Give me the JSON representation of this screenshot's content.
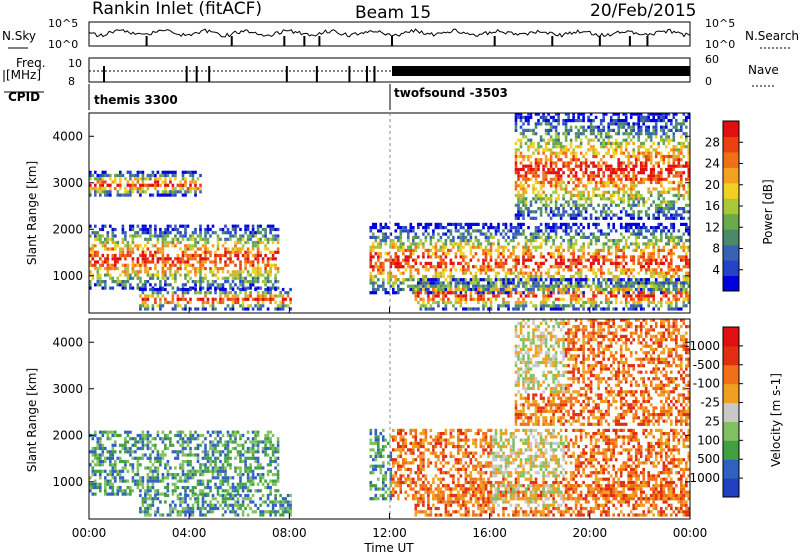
{
  "header": {
    "station": "Rankin Inlet (fitACF)",
    "beam": "Beam 15",
    "date": "20/Feb/2015"
  },
  "strips": {
    "noise_label": "N.Sky",
    "noise_label_right": "N.Search",
    "noise_ticks_left": [
      "10^5",
      "10^0"
    ],
    "noise_ticks_right": [
      "10^5",
      "10^0"
    ],
    "freq_label_line1": "Freq.",
    "freq_label_line2": "[MHz]",
    "freq_ticks_left": [
      "10",
      "8"
    ],
    "nave_label": "Nave",
    "nave_ticks_right": [
      "60",
      "0"
    ],
    "cpid_label": "CPID",
    "cpid_segments": [
      {
        "label": "themis 3300",
        "start_hour": 0,
        "end_hour": 12
      },
      {
        "label": "twofsound -3503",
        "start_hour": 12,
        "end_hour": 24
      }
    ]
  },
  "chart_data": [
    {
      "type": "heatmap",
      "name": "power-panel",
      "x_range_hours": [
        0,
        24
      ],
      "ylabel": "Slant Range [km]",
      "yticks": [
        1000,
        2000,
        3000,
        4000
      ],
      "ylim": [
        200,
        4500
      ],
      "colorbar": {
        "label": "Power [dB]",
        "ticks": [
          4,
          8,
          12,
          16,
          20,
          24,
          28
        ],
        "colors": [
          "#0000dd",
          "#2444c8",
          "#3a62b4",
          "#4a8a6a",
          "#6aaa4a",
          "#a8c83a",
          "#f0d020",
          "#f4a020",
          "#f07018",
          "#ec4010",
          "#e01010"
        ]
      },
      "echo_regions": [
        {
          "start": 0.0,
          "end": 7.5,
          "r_lo": 700,
          "r_hi": 2100
        },
        {
          "start": 0.0,
          "end": 4.5,
          "r_lo": 2700,
          "r_hi": 3200
        },
        {
          "start": 2.0,
          "end": 8.0,
          "r_lo": 250,
          "r_hi": 700
        },
        {
          "start": 11.2,
          "end": 24.0,
          "r_lo": 600,
          "r_hi": 2100
        },
        {
          "start": 13.0,
          "end": 24.0,
          "r_lo": 250,
          "r_hi": 900
        },
        {
          "start": 17.0,
          "end": 24.0,
          "r_lo": 2200,
          "r_hi": 4500
        }
      ]
    },
    {
      "type": "heatmap",
      "name": "velocity-panel",
      "x_range_hours": [
        0,
        24
      ],
      "xlabel": "Time UT",
      "xticks": [
        "00:00",
        "04:00",
        "08:00",
        "12:00",
        "16:00",
        "20:00",
        "00:00"
      ],
      "ylabel": "Slant Range [km]",
      "yticks": [
        1000,
        2000,
        3000,
        4000
      ],
      "ylim": [
        200,
        4500
      ],
      "colorbar": {
        "label": "Velocity [m s-1]",
        "ticks": [
          "1000",
          "500",
          "100",
          "25",
          "-25",
          "-100",
          "-500",
          "-1000"
        ],
        "colors": [
          "#2040c0",
          "#3060c0",
          "#40a040",
          "#80c060",
          "#c8c8c8",
          "#f0a020",
          "#f07018",
          "#e03010",
          "#e01010"
        ]
      },
      "echo_regions": [
        {
          "start": 0.0,
          "end": 7.5,
          "r_lo": 700,
          "r_hi": 2100
        },
        {
          "start": 2.0,
          "end": 8.0,
          "r_lo": 250,
          "r_hi": 700
        },
        {
          "start": 11.2,
          "end": 24.0,
          "r_lo": 600,
          "r_hi": 2100
        },
        {
          "start": 13.0,
          "end": 24.0,
          "r_lo": 250,
          "r_hi": 900
        },
        {
          "start": 17.0,
          "end": 24.0,
          "r_lo": 2200,
          "r_hi": 4500
        }
      ]
    }
  ]
}
